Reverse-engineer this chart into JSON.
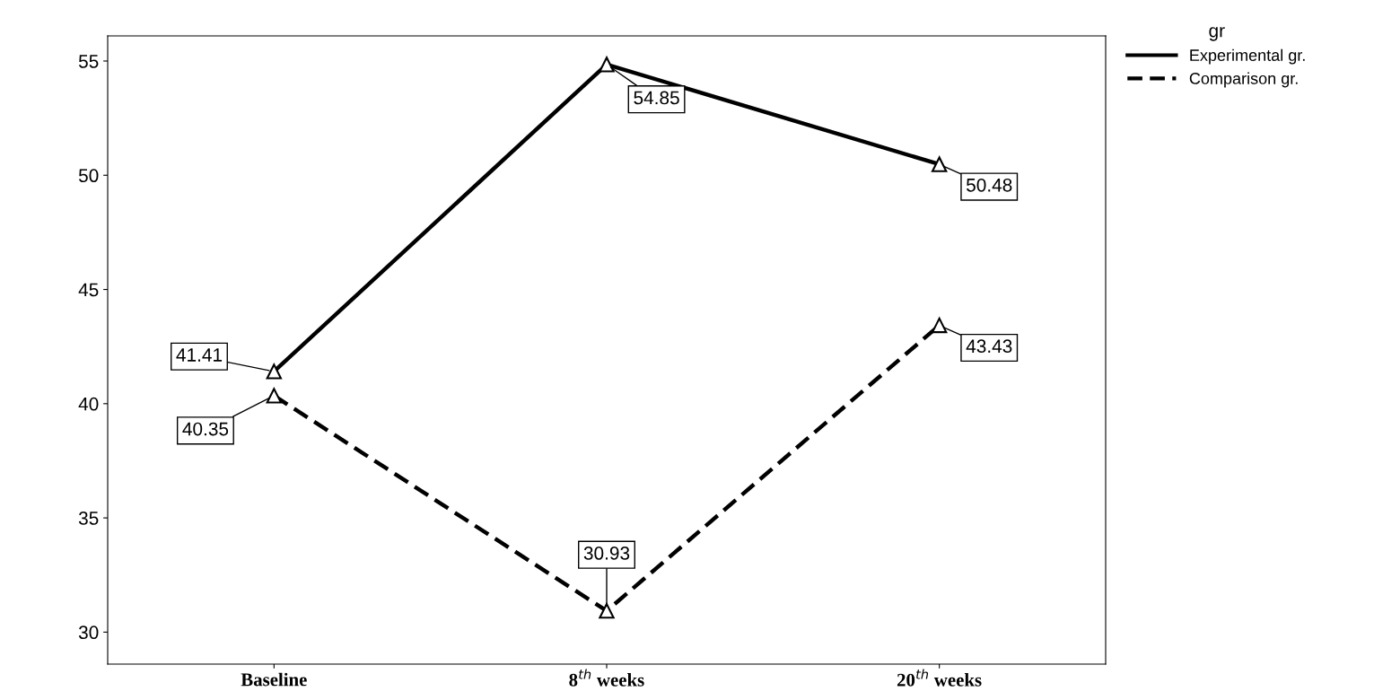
{
  "chart_data": {
    "type": "line",
    "categories": [
      "Baseline",
      "8$^{th}$ weeks",
      "20$^{th}$ weeks"
    ],
    "series": [
      {
        "name": "Experimental gr.",
        "color": "#000000",
        "line_style": "solid",
        "values": [
          41.41,
          54.85,
          50.48
        ]
      },
      {
        "name": "Comparison gr.",
        "color": "#000000",
        "line_style": "dashed",
        "values": [
          40.35,
          30.93,
          43.43
        ]
      }
    ],
    "ylim": [
      28.6,
      56.1
    ],
    "yticks": [
      30,
      35,
      40,
      45,
      50,
      55
    ],
    "marker": "triangle",
    "data_labels": true,
    "grid": false,
    "legend": "top right",
    "legend_title": "gr"
  }
}
